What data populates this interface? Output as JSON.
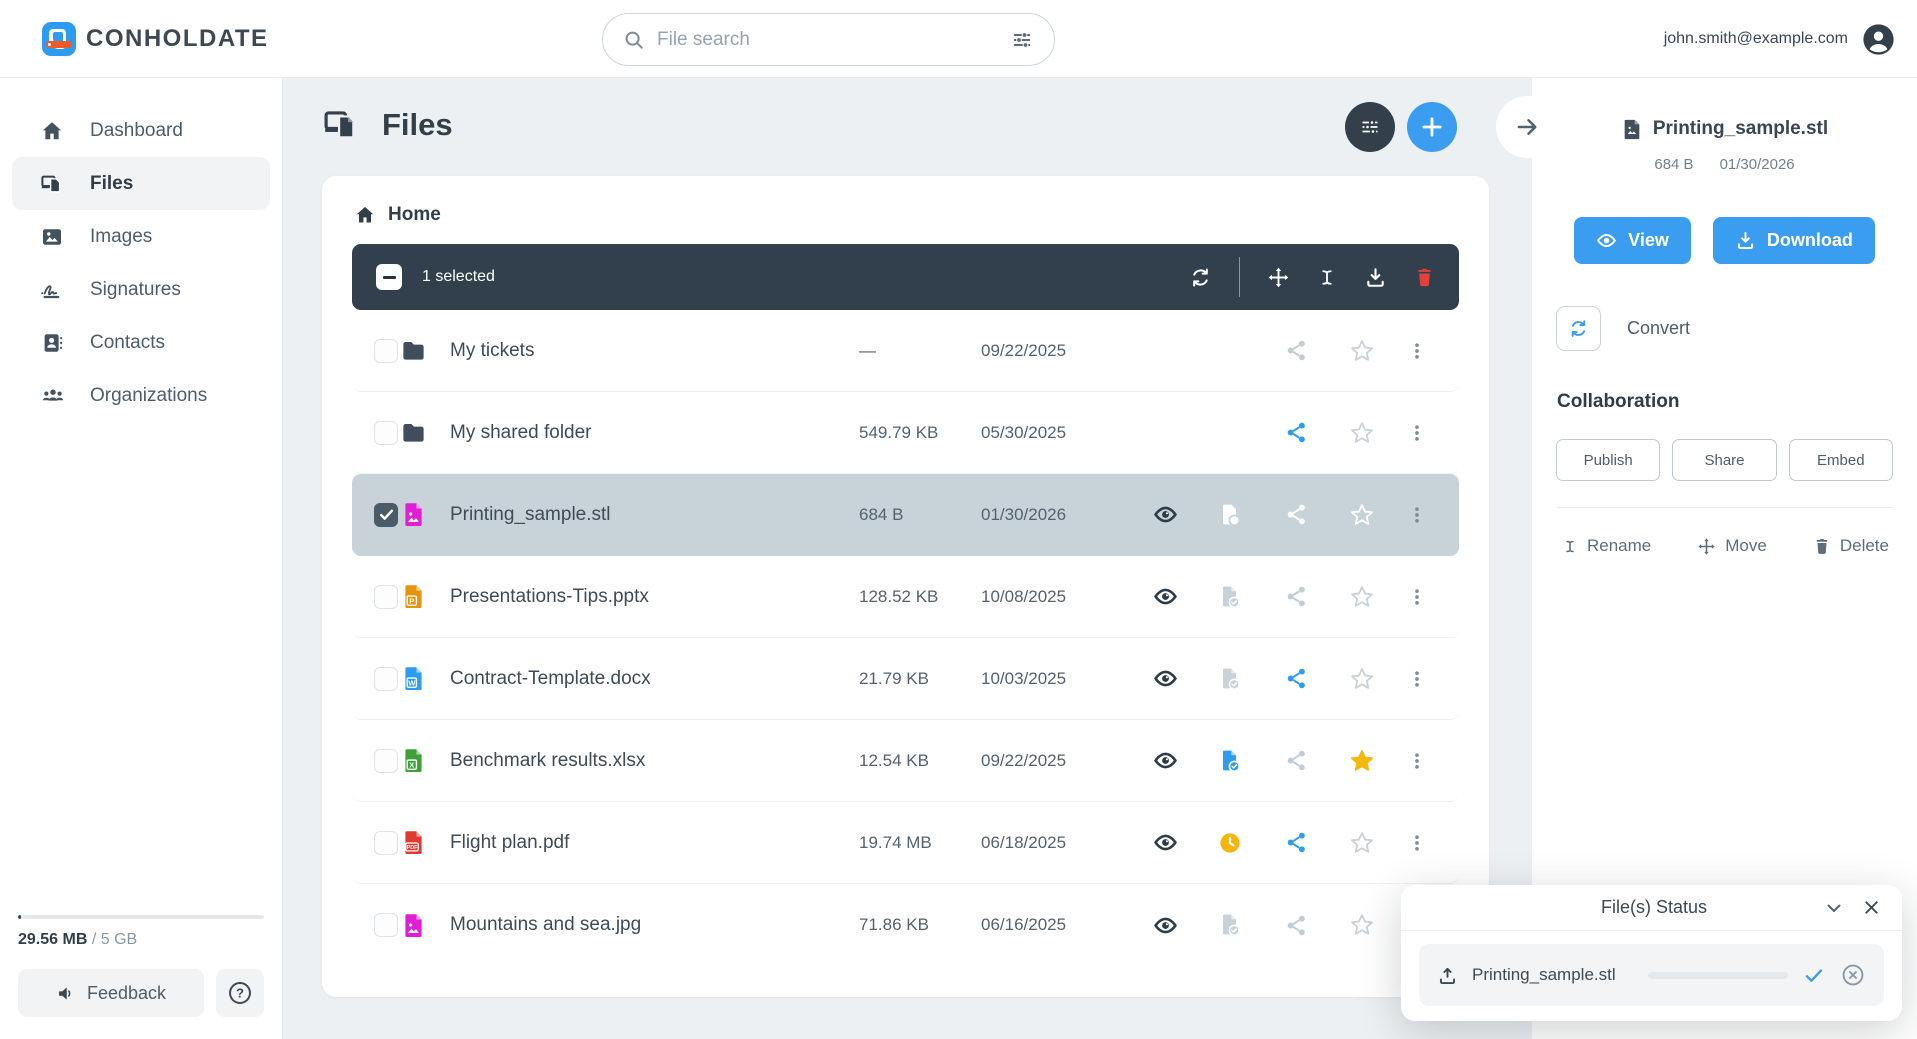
{
  "header": {
    "brand": "CONHOLDATE",
    "search_placeholder": "File search",
    "user_email": "john.smith@example.com"
  },
  "sidebar": {
    "items": [
      {
        "label": "Dashboard",
        "icon": "home-icon",
        "active": false
      },
      {
        "label": "Files",
        "icon": "files-icon",
        "active": true
      },
      {
        "label": "Images",
        "icon": "image-icon",
        "active": false
      },
      {
        "label": "Signatures",
        "icon": "signature-icon",
        "active": false
      },
      {
        "label": "Contacts",
        "icon": "contacts-icon",
        "active": false
      },
      {
        "label": "Organizations",
        "icon": "organizations-icon",
        "active": false
      }
    ],
    "storage": {
      "used": "29.56 MB",
      "total": "/ 5 GB",
      "percent": 1.2
    },
    "feedback_label": "Feedback"
  },
  "main": {
    "title": "Files",
    "breadcrumb": "Home",
    "toolbar": {
      "selected_text": "1 selected"
    },
    "files": [
      {
        "name": "My tickets",
        "type": "folder",
        "size": "—",
        "date": "09/22/2025",
        "eye": false,
        "status": "none",
        "shared": false,
        "starred": false,
        "selected": false
      },
      {
        "name": "My shared folder",
        "type": "folder",
        "size": "549.79 KB",
        "date": "05/30/2025",
        "eye": false,
        "status": "none",
        "shared": true,
        "starred": false,
        "selected": false
      },
      {
        "name": "Printing_sample.stl",
        "type": "stl",
        "size": "684 B",
        "date": "01/30/2026",
        "eye": true,
        "status": "check",
        "shared": false,
        "starred": false,
        "selected": true
      },
      {
        "name": "Presentations-Tips.pptx",
        "type": "pptx",
        "size": "128.52 KB",
        "date": "10/08/2025",
        "eye": true,
        "status": "check",
        "shared": false,
        "starred": false,
        "selected": false
      },
      {
        "name": "Contract-Template.docx",
        "type": "docx",
        "size": "21.79 KB",
        "date": "10/03/2025",
        "eye": true,
        "status": "check",
        "shared": true,
        "starred": false,
        "selected": false
      },
      {
        "name": "Benchmark results.xlsx",
        "type": "xlsx",
        "size": "12.54 KB",
        "date": "09/22/2025",
        "eye": true,
        "status": "check-done",
        "shared": false,
        "starred": true,
        "selected": false
      },
      {
        "name": "Flight plan.pdf",
        "type": "pdf",
        "size": "19.74 MB",
        "date": "06/18/2025",
        "eye": true,
        "status": "clock",
        "shared": true,
        "starred": false,
        "selected": false
      },
      {
        "name": "Mountains and sea.jpg",
        "type": "jpg",
        "size": "71.86 KB",
        "date": "06/16/2025",
        "eye": true,
        "status": "check",
        "shared": false,
        "starred": false,
        "selected": false
      }
    ]
  },
  "details": {
    "file_name": "Printing_sample.stl",
    "file_size": "684 B",
    "file_date": "01/30/2026",
    "view_label": "View",
    "download_label": "Download",
    "convert_label": "Convert",
    "collaboration_title": "Collaboration",
    "collab_buttons": [
      "Publish",
      "Share",
      "Embed"
    ],
    "rename_label": "Rename",
    "move_label": "Move",
    "delete_label": "Delete"
  },
  "status_popup": {
    "title": "File(s) Status",
    "file_name": "Printing_sample.stl",
    "progress_percent": 100
  },
  "colors": {
    "accent_blue": "#3b9df0",
    "dark_slate": "#32404d",
    "star_yellow": "#f7b80d",
    "pending_yellow": "#f5b50b",
    "danger_red": "#e3403a",
    "selected_row": "#c8d2d9",
    "muted_icon": "#c3ccd3"
  }
}
